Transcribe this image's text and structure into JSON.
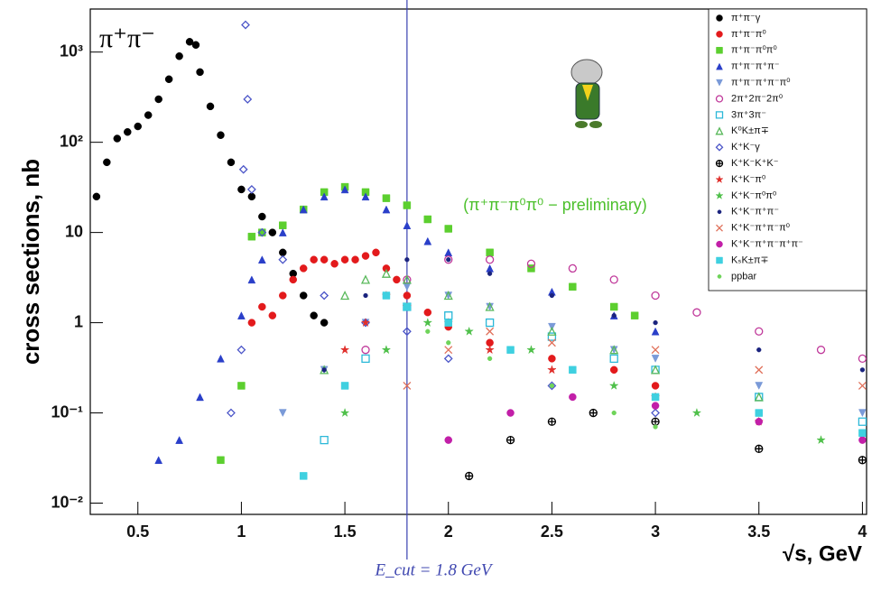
{
  "chart_data": {
    "type": "scatter",
    "title": "π⁺π⁻",
    "annotation": "(π⁺π⁻π⁰π⁰ − preliminary)",
    "cut_label": "E_cut = 1.8 GeV",
    "cut_x": 1.8,
    "x_label": "√s, GeV",
    "y_label": "cross sections, nb",
    "log_y": true,
    "legend": "top-right",
    "xlim": [
      0.27,
      4.02
    ],
    "ylim": [
      0.0075,
      3000
    ],
    "xticks": [
      0.5,
      1,
      1.5,
      2,
      2.5,
      3,
      3.5,
      4
    ],
    "yticks": [
      {
        "value": 0.01,
        "label": "10⁻²"
      },
      {
        "value": 0.1,
        "label": "10⁻¹"
      },
      1,
      10,
      {
        "value": 100,
        "label": "10²"
      },
      {
        "value": 1000,
        "label": "10³"
      }
    ],
    "series": [
      {
        "name": "π⁺π⁻γ",
        "color": "#000000",
        "marker": "circle",
        "x": [
          0.3,
          0.35,
          0.4,
          0.45,
          0.5,
          0.55,
          0.6,
          0.65,
          0.7,
          0.75,
          0.78,
          0.8,
          0.85,
          0.9,
          0.95,
          1.0,
          1.05,
          1.1,
          1.15,
          1.2,
          1.25,
          1.3,
          1.35,
          1.4
        ],
        "values": [
          25,
          60,
          110,
          130,
          150,
          200,
          300,
          500,
          900,
          1300,
          1200,
          600,
          250,
          120,
          60,
          30,
          25,
          15,
          10,
          6,
          3.5,
          2,
          1.2,
          1
        ]
      },
      {
        "name": "π⁺π⁻π⁰",
        "color": "#e31a1c",
        "marker": "circle",
        "x": [
          1.05,
          1.1,
          1.15,
          1.2,
          1.25,
          1.3,
          1.35,
          1.4,
          1.45,
          1.5,
          1.55,
          1.6,
          1.65,
          1.7,
          1.75,
          1.8,
          1.9,
          2.0,
          2.2,
          2.5,
          2.8,
          3.0
        ],
        "values": [
          1,
          1.5,
          1.2,
          2,
          3,
          4,
          5,
          5,
          4.5,
          5,
          5,
          5.5,
          6,
          4,
          3,
          2,
          1.3,
          0.9,
          0.6,
          0.4,
          0.3,
          0.2
        ]
      },
      {
        "name": "π⁺π⁻π⁰π⁰",
        "color": "#5ccf2f",
        "marker": "square",
        "x": [
          0.9,
          1.0,
          1.05,
          1.1,
          1.2,
          1.3,
          1.4,
          1.5,
          1.6,
          1.7,
          1.8,
          1.9,
          2.0,
          2.2,
          2.4,
          2.6,
          2.8,
          2.9
        ],
        "values": [
          0.03,
          0.2,
          9,
          10,
          12,
          18,
          28,
          32,
          28,
          24,
          20,
          14,
          11,
          6,
          4,
          2.5,
          1.5,
          1.2
        ]
      },
      {
        "name": "π⁺π⁻π⁺π⁻",
        "color": "#2a3fc9",
        "marker": "triangle",
        "x": [
          0.6,
          0.7,
          0.8,
          0.9,
          1.0,
          1.05,
          1.1,
          1.2,
          1.3,
          1.4,
          1.5,
          1.6,
          1.7,
          1.8,
          1.9,
          2.0,
          2.2,
          2.5,
          2.8,
          3.0
        ],
        "values": [
          0.03,
          0.05,
          0.15,
          0.4,
          1.2,
          3,
          5,
          10,
          18,
          25,
          30,
          25,
          18,
          12,
          8,
          6,
          4,
          2.2,
          1.2,
          0.8
        ]
      },
      {
        "name": "π⁺π⁻π⁺π⁻π⁰",
        "color": "#7a9ad8",
        "marker": "triangle-down",
        "x": [
          1.2,
          1.4,
          1.6,
          1.8,
          2.0,
          2.2,
          2.5,
          2.8,
          3.0,
          3.5,
          4.0
        ],
        "values": [
          0.1,
          0.3,
          1,
          2.5,
          2,
          1.5,
          0.9,
          0.5,
          0.4,
          0.2,
          0.1
        ]
      },
      {
        "name": "2π⁺2π⁻2π⁰",
        "color": "#c0389a",
        "marker": "open-circle",
        "x": [
          1.6,
          1.8,
          2.0,
          2.2,
          2.4,
          2.6,
          2.8,
          3.0,
          3.2,
          3.5,
          3.8,
          4.0
        ],
        "values": [
          0.5,
          3,
          5,
          5,
          4.5,
          4,
          3,
          2,
          1.3,
          0.8,
          0.5,
          0.4
        ]
      },
      {
        "name": "3π⁺3π⁻",
        "color": "#2bb8d8",
        "marker": "open-square",
        "x": [
          1.4,
          1.6,
          1.8,
          2.0,
          2.2,
          2.5,
          2.8,
          3.0,
          3.5,
          4.0
        ],
        "values": [
          0.05,
          0.4,
          1.5,
          1.2,
          1,
          0.7,
          0.4,
          0.3,
          0.15,
          0.08
        ]
      },
      {
        "name": "K⁰K±π∓",
        "color": "#58b85a",
        "marker": "open-triangle",
        "x": [
          1.4,
          1.5,
          1.6,
          1.7,
          1.8,
          2.0,
          2.2,
          2.5,
          2.8,
          3.0,
          3.5
        ],
        "values": [
          0.3,
          2,
          3,
          3.5,
          3,
          2,
          1.5,
          0.8,
          0.5,
          0.3,
          0.15
        ]
      },
      {
        "name": "K⁺K⁻γ",
        "color": "#4b55c8",
        "marker": "open-diamond",
        "x": [
          0.95,
          1.0,
          1.01,
          1.02,
          1.03,
          1.05,
          1.1,
          1.2,
          1.4,
          1.6,
          1.8,
          2.0,
          2.5,
          3.0
        ],
        "values": [
          0.1,
          0.5,
          50,
          2000,
          300,
          30,
          10,
          5,
          2,
          1,
          0.8,
          0.4,
          0.2,
          0.1
        ]
      },
      {
        "name": "K⁺K⁻K⁺K⁻",
        "color": "#000000",
        "marker": "circle-cross",
        "x": [
          2.1,
          2.3,
          2.5,
          2.7,
          3.0,
          3.5,
          4.0
        ],
        "values": [
          0.02,
          0.05,
          0.08,
          0.1,
          0.08,
          0.04,
          0.03
        ]
      },
      {
        "name": "K⁺K⁻π⁰",
        "color": "#e0302c",
        "marker": "star",
        "x": [
          1.5,
          1.6,
          1.7,
          1.8,
          2.0,
          2.2,
          2.5,
          3.0,
          3.5
        ],
        "values": [
          0.5,
          1,
          2,
          1.5,
          1,
          0.5,
          0.3,
          0.15,
          0.08
        ]
      },
      {
        "name": "K⁺K⁻π⁰π⁰",
        "color": "#4fc04a",
        "marker": "star",
        "x": [
          1.5,
          1.7,
          1.9,
          2.1,
          2.4,
          2.8,
          3.2,
          3.8
        ],
        "values": [
          0.1,
          0.5,
          1,
          0.8,
          0.5,
          0.2,
          0.1,
          0.05
        ]
      },
      {
        "name": "K⁺K⁻π⁺π⁻",
        "color": "#1a237e",
        "marker": "dot",
        "x": [
          1.4,
          1.6,
          1.8,
          2.0,
          2.2,
          2.5,
          2.8,
          3.0,
          3.5,
          4.0
        ],
        "values": [
          0.3,
          2,
          5,
          5,
          3.5,
          2,
          1.2,
          1,
          0.5,
          0.3
        ]
      },
      {
        "name": "K⁺K⁻π⁺π⁻π⁰",
        "color": "#e0705a",
        "marker": "x",
        "x": [
          1.8,
          2.0,
          2.2,
          2.5,
          3.0,
          3.5,
          4.0
        ],
        "values": [
          0.2,
          0.5,
          0.8,
          0.6,
          0.5,
          0.3,
          0.2
        ]
      },
      {
        "name": "K⁺K⁻π⁺π⁻π⁺π⁻",
        "color": "#c21fa8",
        "marker": "circle",
        "x": [
          2.0,
          2.3,
          2.6,
          3.0,
          3.5,
          4.0
        ],
        "values": [
          0.05,
          0.1,
          0.15,
          0.12,
          0.08,
          0.05
        ]
      },
      {
        "name": "KₛK±π∓",
        "color": "#3fd0e0",
        "marker": "square",
        "x": [
          1.3,
          1.5,
          1.7,
          1.8,
          2.0,
          2.3,
          2.6,
          3.0,
          3.5,
          4.0
        ],
        "values": [
          0.02,
          0.2,
          2,
          1.5,
          1,
          0.5,
          0.3,
          0.15,
          0.1,
          0.06
        ]
      },
      {
        "name": "ppbar",
        "color": "#6fd45a",
        "marker": "dot",
        "x": [
          1.9,
          2.0,
          2.2,
          2.5,
          2.8,
          3.0
        ],
        "values": [
          0.8,
          0.6,
          0.4,
          0.2,
          0.1,
          0.07
        ]
      }
    ]
  }
}
